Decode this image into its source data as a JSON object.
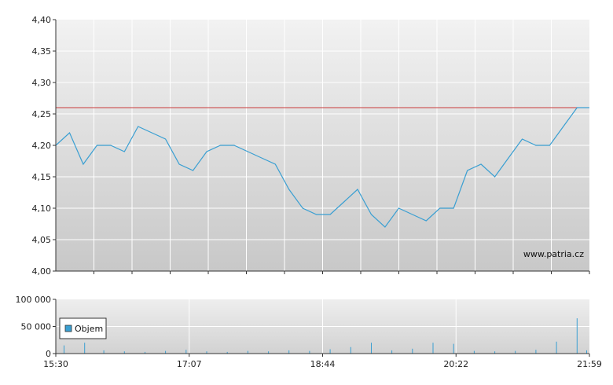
{
  "watermark": "www.patria.cz",
  "colors": {
    "price_line": "#3a9fd2",
    "reference_line": "#c83a3a",
    "volume_bar": "#3a9fd2",
    "grid": "#ffffff",
    "axis": "#333333"
  },
  "chart_data": [
    {
      "type": "line",
      "title": "",
      "xlabel": "",
      "ylabel": "",
      "ylim": [
        4.0,
        4.4
      ],
      "y_ticks": [
        "4,40",
        "4,35",
        "4,30",
        "4,25",
        "4,20",
        "4,15",
        "4,10",
        "4,05",
        "4,00"
      ],
      "reference_value": 4.26,
      "grid": true,
      "x_range": [
        "15:30",
        "21:59"
      ],
      "series": [
        {
          "name": "",
          "x": [
            "15:30",
            "15:40",
            "15:50",
            "16:00",
            "16:10",
            "16:20",
            "16:30",
            "16:40",
            "16:50",
            "17:00",
            "17:10",
            "17:20",
            "17:30",
            "17:40",
            "17:50",
            "18:00",
            "18:10",
            "18:20",
            "18:30",
            "18:40",
            "18:50",
            "19:00",
            "19:10",
            "19:20",
            "19:30",
            "19:40",
            "19:50",
            "20:00",
            "20:10",
            "20:20",
            "20:30",
            "20:40",
            "20:50",
            "21:00",
            "21:10",
            "21:20",
            "21:30",
            "21:40",
            "21:50",
            "21:59"
          ],
          "values": [
            4.2,
            4.22,
            4.17,
            4.2,
            4.2,
            4.19,
            4.23,
            4.22,
            4.21,
            4.17,
            4.16,
            4.19,
            4.2,
            4.2,
            4.19,
            4.18,
            4.17,
            4.13,
            4.1,
            4.09,
            4.09,
            4.11,
            4.13,
            4.09,
            4.07,
            4.1,
            4.09,
            4.08,
            4.1,
            4.1,
            4.16,
            4.17,
            4.15,
            4.18,
            4.21,
            4.2,
            4.2,
            4.23,
            4.26,
            4.26
          ]
        }
      ]
    },
    {
      "type": "bar",
      "title": "",
      "ylim": [
        0,
        100000
      ],
      "y_ticks": [
        "100 000",
        "50 000",
        "0"
      ],
      "x_ticks": [
        "15:30",
        "17:07",
        "18:44",
        "20:22",
        "21:59"
      ],
      "legend": "Objem",
      "legend_position": "bottom-left",
      "series": [
        {
          "name": "Objem",
          "x": [
            "15:36",
            "15:51",
            "16:05",
            "16:20",
            "16:35",
            "16:50",
            "17:05",
            "17:20",
            "17:35",
            "17:50",
            "18:05",
            "18:20",
            "18:35",
            "18:50",
            "19:05",
            "19:20",
            "19:35",
            "19:50",
            "20:05",
            "20:20",
            "20:35",
            "20:50",
            "21:05",
            "21:20",
            "21:35",
            "21:50",
            "21:57"
          ],
          "values": [
            15000,
            20000,
            6000,
            4000,
            3000,
            5000,
            7000,
            4000,
            3000,
            5000,
            4000,
            6000,
            5000,
            8000,
            12000,
            20000,
            6000,
            9000,
            20000,
            18000,
            5000,
            4000,
            5000,
            7000,
            22000,
            65000,
            6000
          ]
        }
      ]
    }
  ]
}
